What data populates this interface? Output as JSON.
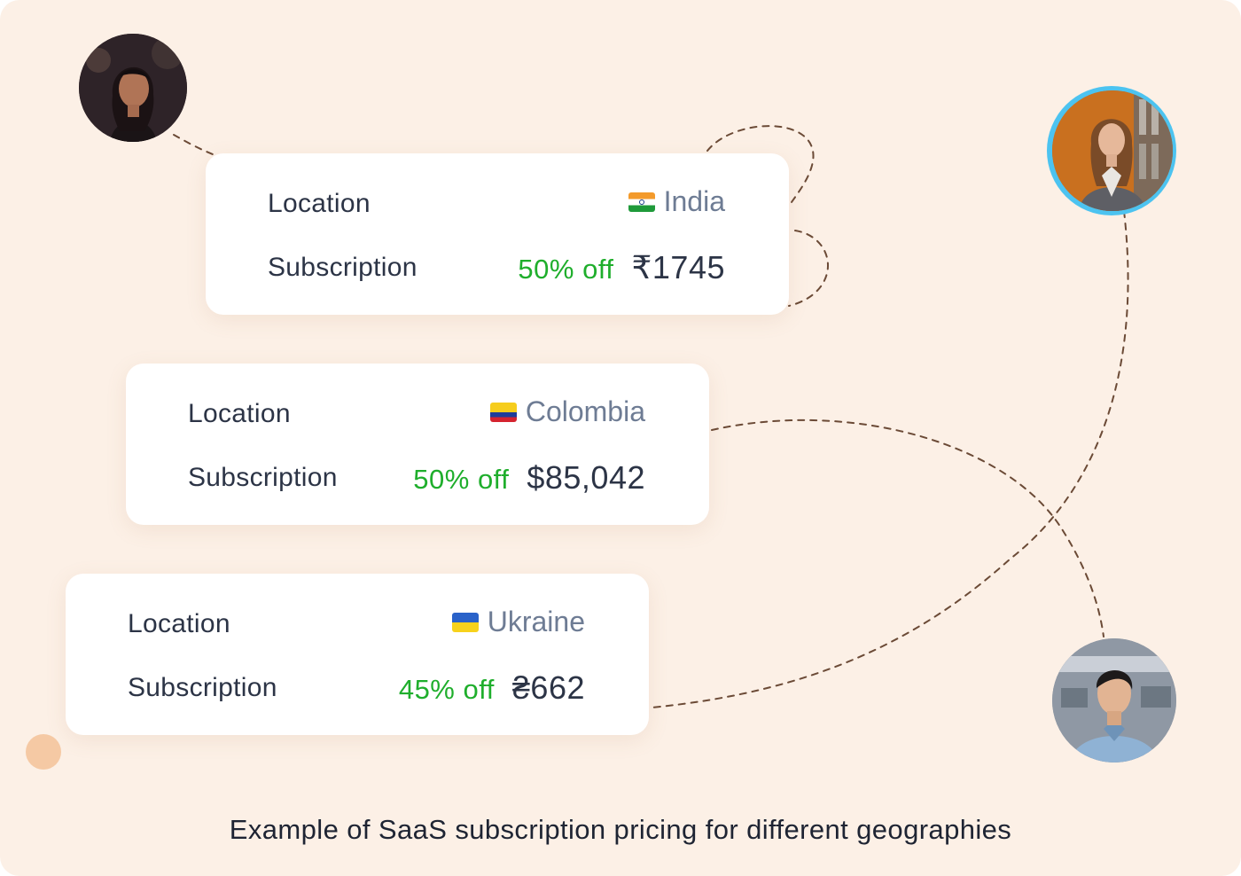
{
  "cards": [
    {
      "location_label": "Location",
      "subscription_label": "Subscription",
      "country": "India",
      "flag": "india-flag",
      "discount": "50% off",
      "price": "₹1745"
    },
    {
      "location_label": "Location",
      "subscription_label": "Subscription",
      "country": "Colombia",
      "flag": "colombia-flag",
      "discount": "50% off",
      "price": "$85,042"
    },
    {
      "location_label": "Location",
      "subscription_label": "Subscription",
      "country": "Ukraine",
      "flag": "ukraine-flag",
      "discount": "45% off",
      "price": "₴662"
    }
  ],
  "caption": "Example of SaaS subscription pricing for different geographies",
  "colors": {
    "background": "#fcf0e6",
    "discount": "#1fae2c",
    "price": "#2c3446",
    "country": "#6e7c94",
    "connector": "#6b4a36",
    "accent_dot": "#f5c9a4",
    "avatar_ring": "#4cc3f0"
  }
}
